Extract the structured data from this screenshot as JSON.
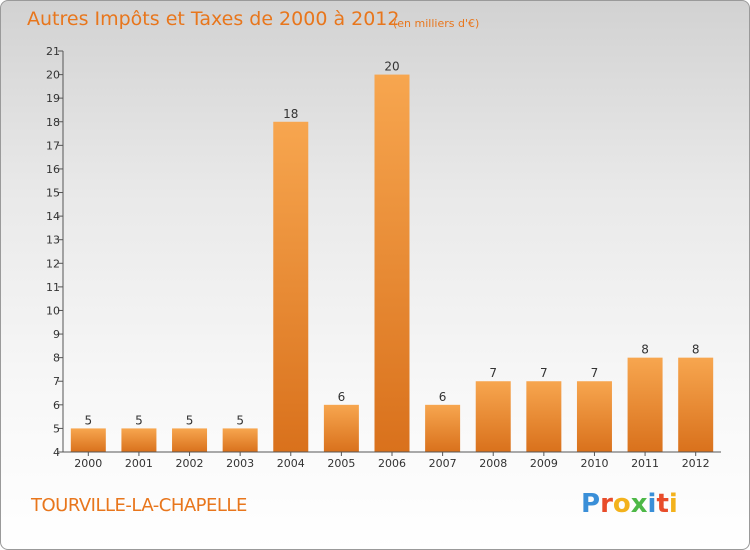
{
  "header": {
    "title": "Autres Impôts et Taxes de 2000 à 2012",
    "unit": "(en milliers d'€)"
  },
  "footer": {
    "commune": "TOURVILLE-LA-CHAPELLE",
    "brand": "Proxiti",
    "brand_letter_colors": [
      "#3a8fd8",
      "#e84c2a",
      "#f3b21c",
      "#4db847",
      "#3a8fd8",
      "#e84c2a",
      "#f3b21c"
    ]
  },
  "chart_data": {
    "type": "bar",
    "categories": [
      "2000",
      "2001",
      "2002",
      "2003",
      "2004",
      "2005",
      "2006",
      "2007",
      "2008",
      "2009",
      "2010",
      "2011",
      "2012"
    ],
    "values": [
      5,
      5,
      5,
      5,
      18,
      6,
      20,
      6,
      7,
      7,
      7,
      8,
      8
    ],
    "data_labels": [
      "5",
      "5",
      "5",
      "5",
      "18",
      "6",
      "20",
      "6",
      "7",
      "7",
      "7",
      "8",
      "8"
    ],
    "title": "Autres Impôts et Taxes de 2000 à 2012",
    "xlabel": "",
    "ylabel": "",
    "ylim": [
      4,
      21
    ],
    "yticks": [
      4,
      5,
      6,
      7,
      8,
      9,
      10,
      11,
      12,
      13,
      14,
      15,
      16,
      17,
      18,
      19,
      20,
      21
    ],
    "grid": false,
    "legend": "none",
    "bar_color_top": "#f7a64f",
    "bar_color_bottom": "#d9711c",
    "text_color": "#333333"
  }
}
